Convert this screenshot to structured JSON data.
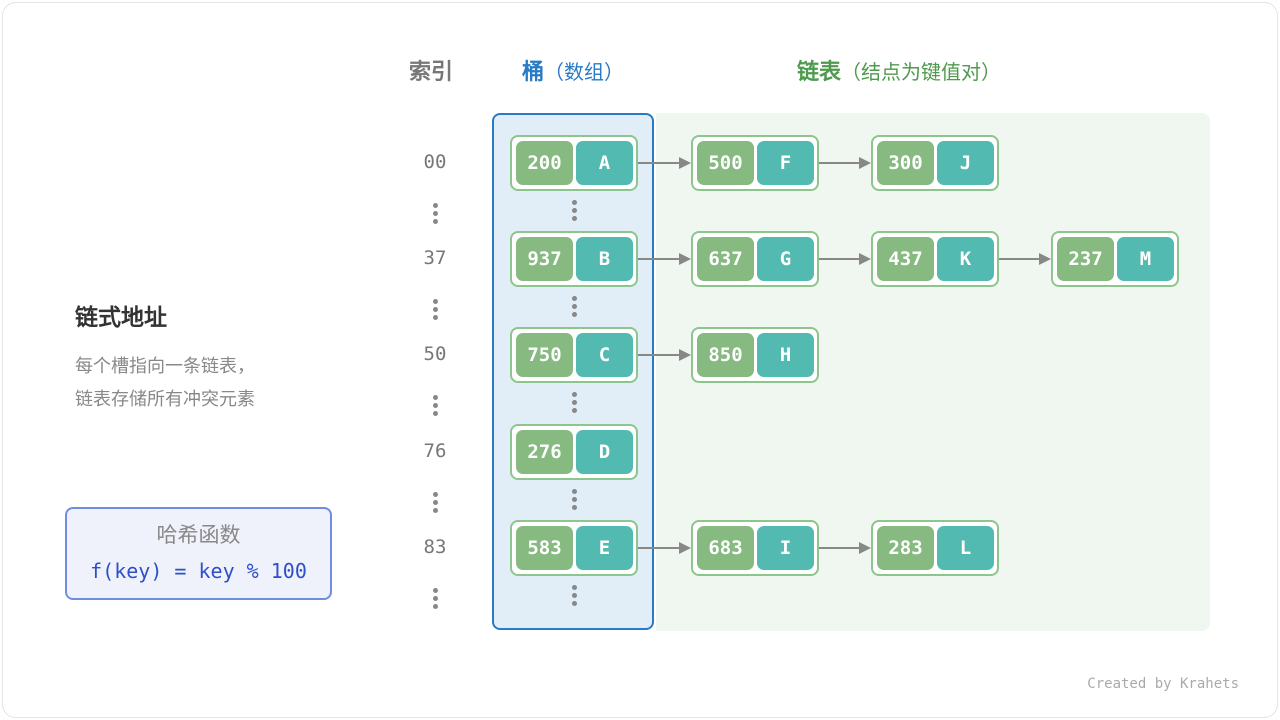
{
  "headers": {
    "index": "索引",
    "bucket": "桶",
    "bucket_sub": "（数组）",
    "chain": "链表",
    "chain_sub": "（结点为键值对）"
  },
  "side": {
    "title": "链式地址",
    "desc_line1": "每个槽指向一条链表，",
    "desc_line2": "链表存储所有冲突元素"
  },
  "hash": {
    "title": "哈希函数",
    "formula": "f(key) = key % 100"
  },
  "rows": [
    {
      "index": "00",
      "bucket": {
        "key": "200",
        "value": "A"
      },
      "chain": [
        {
          "key": "500",
          "value": "F"
        },
        {
          "key": "300",
          "value": "J"
        }
      ]
    },
    {
      "index": "37",
      "bucket": {
        "key": "937",
        "value": "B"
      },
      "chain": [
        {
          "key": "637",
          "value": "G"
        },
        {
          "key": "437",
          "value": "K"
        },
        {
          "key": "237",
          "value": "M"
        }
      ]
    },
    {
      "index": "50",
      "bucket": {
        "key": "750",
        "value": "C"
      },
      "chain": [
        {
          "key": "850",
          "value": "H"
        }
      ]
    },
    {
      "index": "76",
      "bucket": {
        "key": "276",
        "value": "D"
      },
      "chain": []
    },
    {
      "index": "83",
      "bucket": {
        "key": "583",
        "value": "E"
      },
      "chain": [
        {
          "key": "683",
          "value": "I"
        },
        {
          "key": "283",
          "value": "L"
        }
      ]
    }
  ],
  "credit": "Created by Krahets",
  "colors": {
    "bucket": "#2a7bc5",
    "chain": "#4e9a4e",
    "key": "#86ba81",
    "value": "#52bab0"
  }
}
